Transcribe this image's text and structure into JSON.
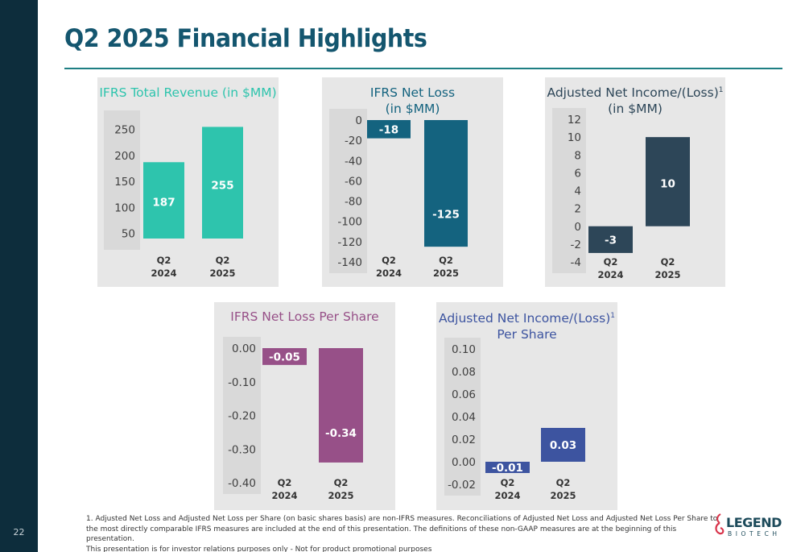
{
  "page": {
    "title": "Q2 2025 Financial Highlights",
    "page_number": "22"
  },
  "footnote": {
    "line1": "1. Adjusted Net Loss and Adjusted Net Loss per Share (on basic shares basis) are non-IFRS measures. Reconciliations of Adjusted Net Loss and Adjusted Net Loss Per Share to the most directly comparable IFRS measures are included at the end of this presentation. The definitions of these non-GAAP measures are at the beginning of this presentation.",
    "line2": "This presentation is for investor relations purposes only - Not for product promotional purposes"
  },
  "logo": {
    "word": "LEGEND",
    "sub": "BIOTECH"
  },
  "colors": {
    "left_bar": "#0d2d3c",
    "title": "#14566f",
    "teal": "#2ec4ad",
    "navy_teal": "#14637f",
    "dark_slate": "#2d4658",
    "purple": "#975088",
    "indigo": "#3d54a0",
    "panel_bg": "#e7e7e7",
    "axis_strip": "#d9d9d9"
  },
  "chart_data": [
    {
      "id": "total-revenue",
      "type": "bar",
      "title_lines": [
        "IFRS Total Revenue (in $MM)"
      ],
      "title_color": "#2ec4ad",
      "bar_color": "#2ec4ad",
      "categories": [
        [
          "Q2",
          "2024"
        ],
        [
          "Q2",
          "2025"
        ]
      ],
      "values": [
        187,
        255
      ],
      "value_labels": [
        "187",
        "255"
      ],
      "yticks": [
        50,
        100,
        150,
        200,
        250
      ],
      "ytick_labels": [
        "50",
        "100",
        "150",
        "200",
        "250"
      ],
      "ylim": [
        40,
        265
      ],
      "xlabel": "",
      "ylabel": ""
    },
    {
      "id": "net-loss",
      "type": "bar",
      "title_lines": [
        "IFRS Net Loss",
        "(in $MM)"
      ],
      "title_color": "#14637f",
      "bar_color": "#14637f",
      "categories": [
        [
          "Q2",
          "2024"
        ],
        [
          "Q2",
          "2025"
        ]
      ],
      "values": [
        -18,
        -125
      ],
      "value_labels": [
        "-18",
        "-125"
      ],
      "yticks": [
        0,
        -20,
        -40,
        -60,
        -80,
        -100,
        -120,
        -140
      ],
      "ytick_labels": [
        "0",
        "-20",
        "-40",
        "-60",
        "-80",
        "-100",
        "-120",
        "-140"
      ],
      "ylim": [
        -140,
        0
      ],
      "xlabel": "",
      "ylabel": ""
    },
    {
      "id": "adj-net-income",
      "type": "bar",
      "title_lines": [
        "Adjusted Net Income/(Loss)",
        "(in $MM)"
      ],
      "title_sup": "1",
      "title_color": "#2d4658",
      "bar_color": "#2d4658",
      "categories": [
        [
          "Q2",
          "2024"
        ],
        [
          "Q2",
          "2025"
        ]
      ],
      "values": [
        -3,
        10
      ],
      "value_labels": [
        "-3",
        "10"
      ],
      "yticks": [
        -4,
        -2,
        0,
        2,
        4,
        6,
        8,
        10,
        12
      ],
      "ytick_labels": [
        "-4",
        "-2",
        "0",
        "2",
        "4",
        "6",
        "8",
        "10",
        "12"
      ],
      "ylim": [
        -4,
        12
      ],
      "xlabel": "",
      "ylabel": ""
    },
    {
      "id": "net-loss-per-share",
      "type": "bar",
      "title_lines": [
        "IFRS Net Loss Per Share"
      ],
      "title_color": "#975088",
      "bar_color": "#975088",
      "categories": [
        [
          "Q2",
          "2024"
        ],
        [
          "Q2",
          "2025"
        ]
      ],
      "values": [
        -0.05,
        -0.34
      ],
      "value_labels": [
        "-0.05",
        "-0.34"
      ],
      "yticks": [
        0,
        -0.1,
        -0.2,
        -0.3,
        -0.4
      ],
      "ytick_labels": [
        "0.00",
        "-0.10",
        "-0.20",
        "-0.30",
        "-0.40"
      ],
      "ylim": [
        -0.4,
        0
      ],
      "xlabel": "",
      "ylabel": ""
    },
    {
      "id": "adj-net-income-per-share",
      "type": "bar",
      "title_lines": [
        "Adjusted Net Income/(Loss)",
        "Per Share"
      ],
      "title_sup": "1",
      "title_color": "#3d54a0",
      "bar_color": "#3d54a0",
      "categories": [
        [
          "Q2",
          "2024"
        ],
        [
          "Q2",
          "2025"
        ]
      ],
      "values": [
        -0.01,
        0.03
      ],
      "value_labels": [
        "-0.01",
        "0.03"
      ],
      "yticks": [
        -0.02,
        0,
        0.02,
        0.04,
        0.06,
        0.08,
        0.1
      ],
      "ytick_labels": [
        "-0.02",
        "0.00",
        "0.02",
        "0.04",
        "0.06",
        "0.08",
        "0.10"
      ],
      "ylim": [
        -0.02,
        0.1
      ],
      "xlabel": "",
      "ylabel": ""
    }
  ]
}
